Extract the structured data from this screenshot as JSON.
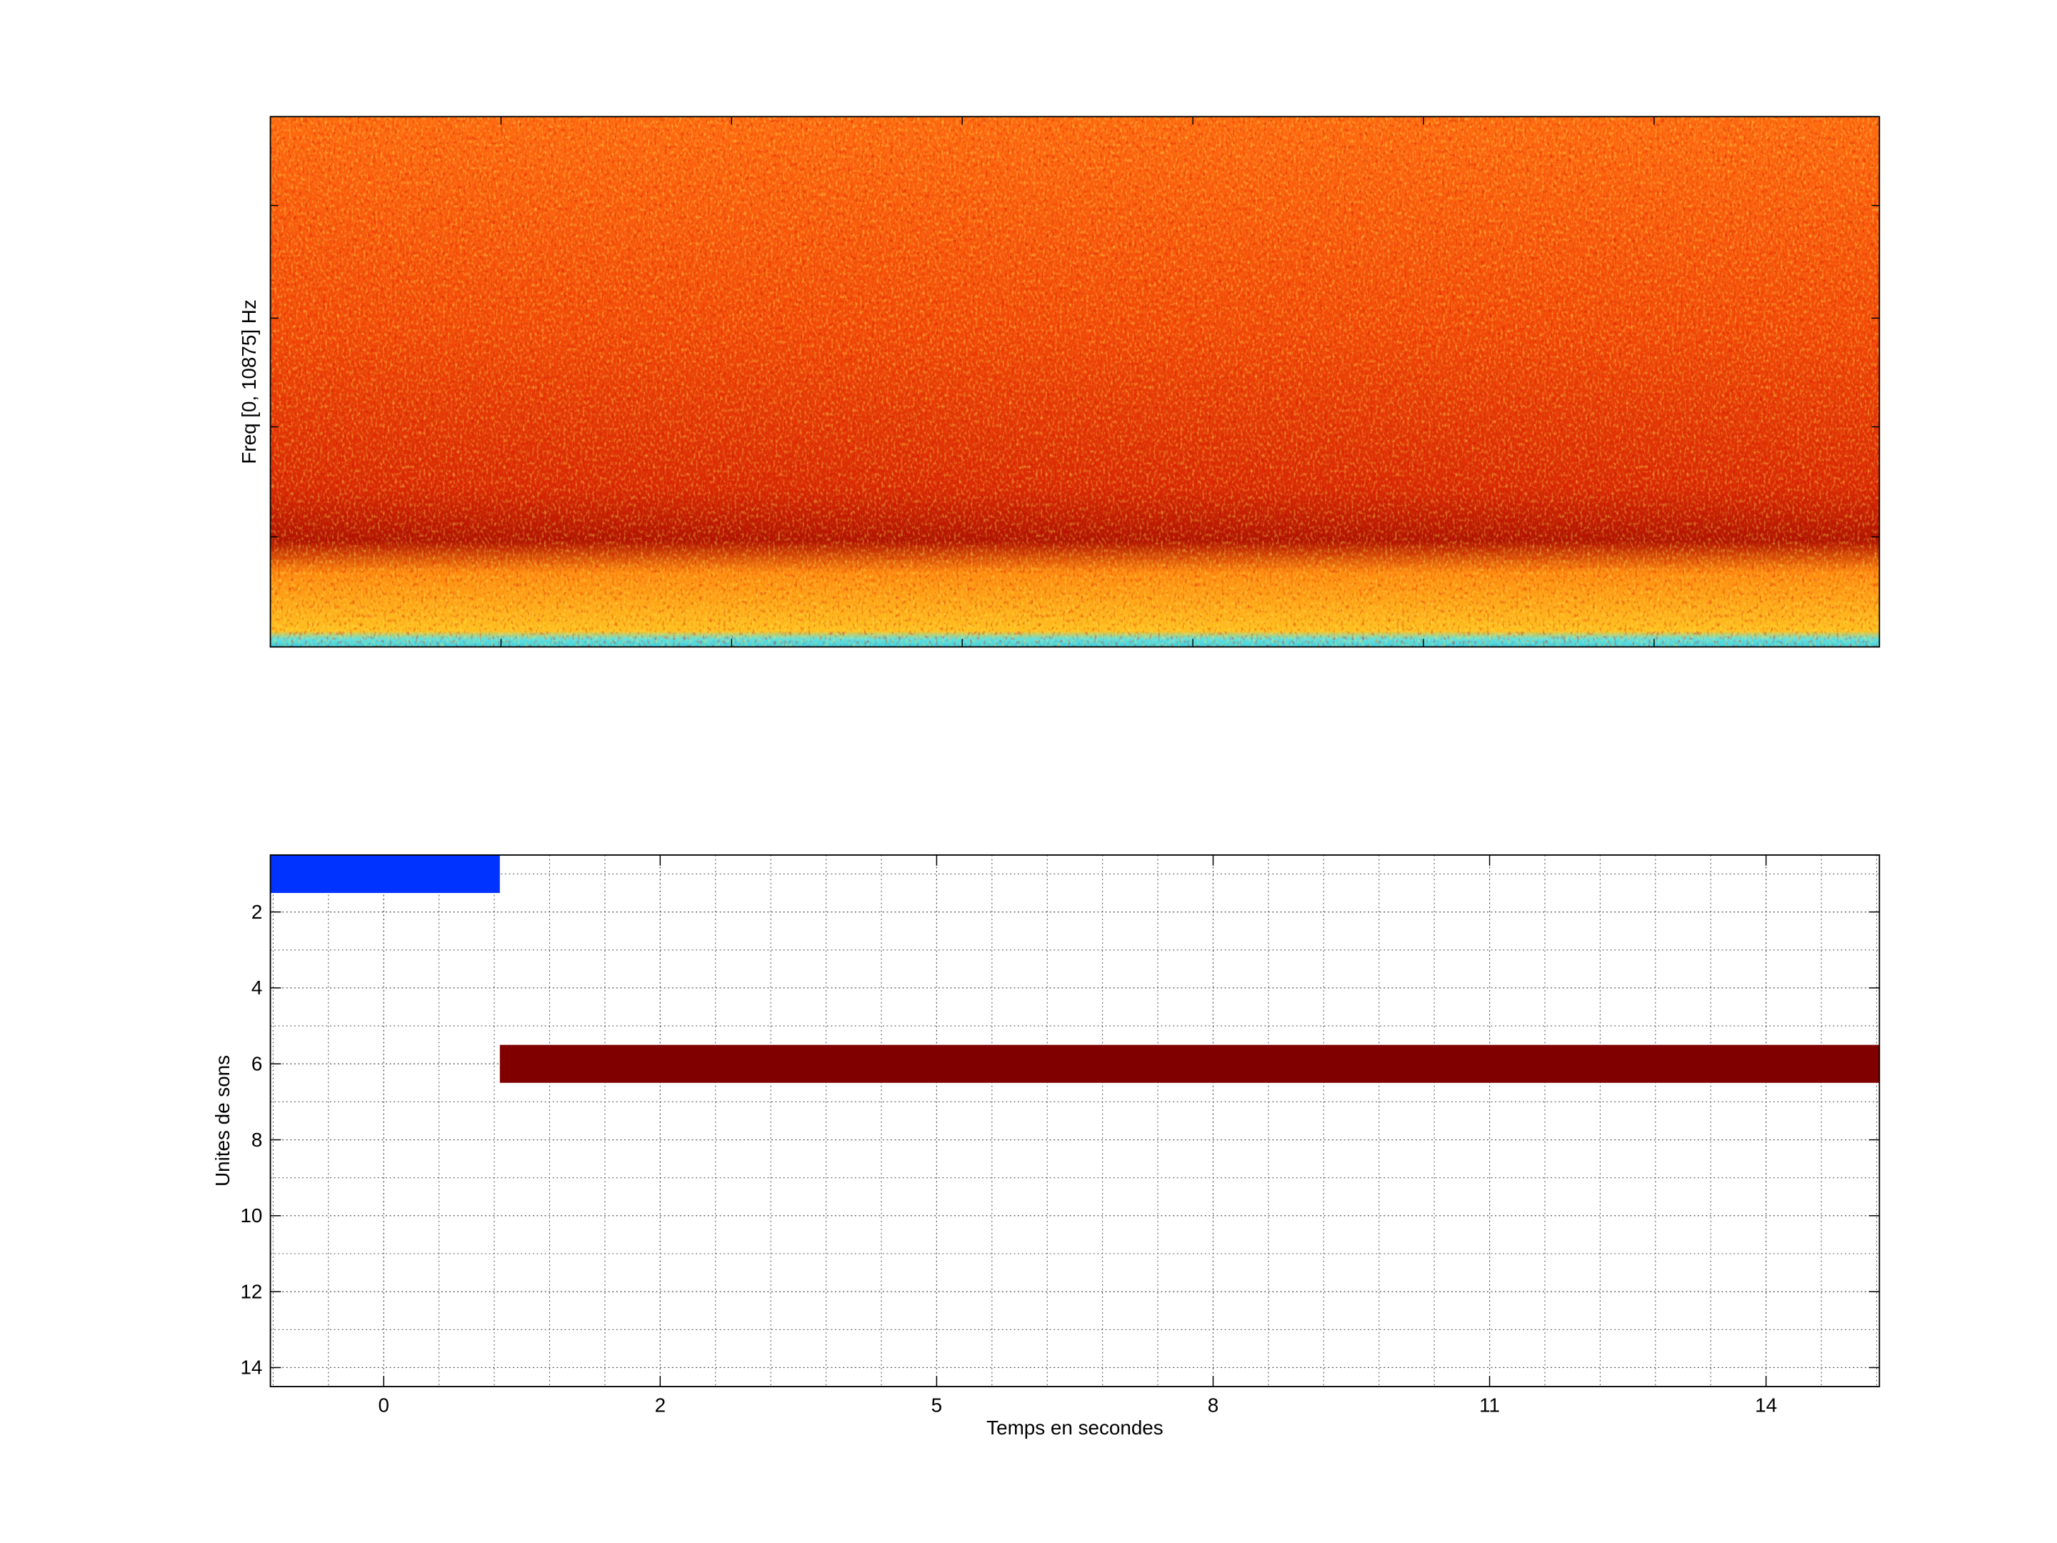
{
  "chart_data": [
    {
      "type": "spectrogram",
      "ylabel": "Freq [0, 10875] Hz"
    },
    {
      "type": "timeline",
      "xlabel": "Temps en secondes",
      "ylabel": "Unites de sons",
      "xlim": [
        -0.41,
        5.41
      ],
      "xticks": [
        {
          "value": 0,
          "label": "0"
        },
        {
          "value": 1,
          "label": "2"
        },
        {
          "value": 2,
          "label": "5"
        },
        {
          "value": 3,
          "label": "8"
        },
        {
          "value": 4,
          "label": "11"
        },
        {
          "value": 5,
          "label": "14"
        }
      ],
      "ylim": [
        0.5,
        14.5
      ],
      "yticks": [
        2,
        4,
        6,
        8,
        10,
        12,
        14
      ],
      "y_reversed": true,
      "grid": true,
      "segments": [
        {
          "row": 1,
          "start": -0.41,
          "end": 0.42,
          "color": "#0033ff"
        },
        {
          "row": 6,
          "start": 0.42,
          "end": 5.41,
          "color": "#800000"
        }
      ]
    }
  ]
}
